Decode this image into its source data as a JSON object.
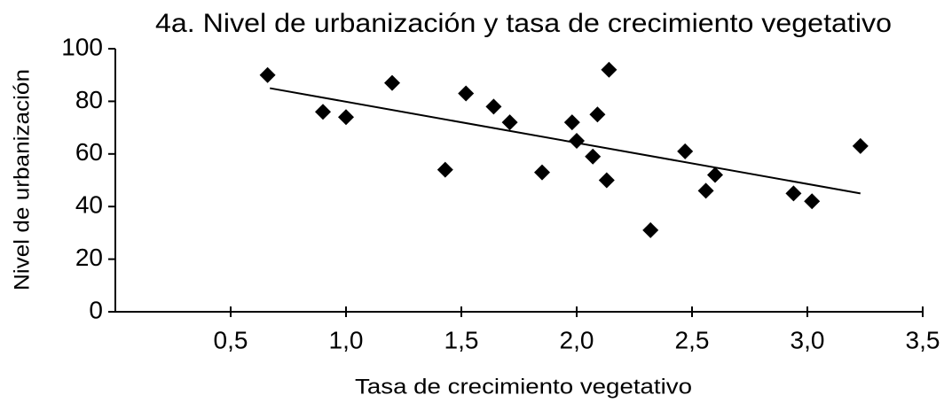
{
  "chart_data": {
    "type": "scatter",
    "title": "4a. Nivel de urbanización y tasa de crecimiento vegetativo",
    "xlabel": "Tasa de crecimiento vegetativo",
    "ylabel": "Nivel de urbanización",
    "x": [
      0.66,
      0.9,
      1.0,
      1.2,
      1.43,
      1.52,
      1.64,
      1.71,
      1.85,
      1.98,
      2.0,
      2.07,
      2.09,
      2.13,
      2.14,
      2.32,
      2.47,
      2.56,
      2.6,
      2.94,
      3.02,
      3.23
    ],
    "y": [
      90,
      76,
      74,
      87,
      54,
      83,
      78,
      72,
      53,
      72,
      65,
      59,
      75,
      50,
      92,
      31,
      61,
      46,
      52,
      45,
      42,
      63
    ],
    "color": "#000000",
    "trendline": {
      "x": [
        0.67,
        3.23
      ],
      "y": [
        85,
        45
      ]
    },
    "xlim": [
      0,
      3.5
    ],
    "xticks": [
      {
        "value": 0.5,
        "label": "0,5"
      },
      {
        "value": 1.0,
        "label": "1,0"
      },
      {
        "value": 1.5,
        "label": "1,5"
      },
      {
        "value": 2.0,
        "label": "2,0"
      },
      {
        "value": 2.5,
        "label": "2,5"
      },
      {
        "value": 3.0,
        "label": "3,0"
      },
      {
        "value": 3.5,
        "label": "3,5"
      }
    ],
    "ylim": [
      0,
      100
    ],
    "yticks": [
      0,
      20,
      40,
      60,
      80,
      100
    ]
  }
}
